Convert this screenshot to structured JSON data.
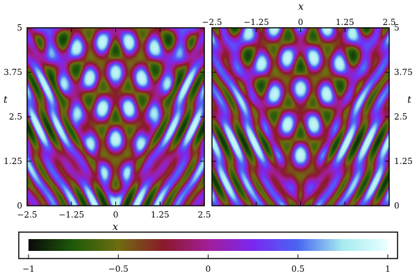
{
  "chart_data": [
    {
      "type": "heatmap",
      "panel": "left",
      "xlabel": "x",
      "ylabel": "t",
      "xlim": [
        -2.5,
        2.5
      ],
      "ylim": [
        0,
        5
      ],
      "x_ticks": [
        "−2.5",
        "−1.25",
        "0",
        "1.25",
        "2.5"
      ],
      "x_tick_values": [
        -2.5,
        -1.25,
        0,
        1.25,
        2.5
      ],
      "y_ticks": [
        "0",
        "1.25",
        "2.5",
        "3.75",
        "5"
      ],
      "y_tick_values": [
        0,
        1.25,
        2.5,
        3.75,
        5
      ],
      "x_axis_position": "bottom",
      "y_axis_position": "left",
      "field": "interference pattern symmetric about x = 0 (V-shaped fringes opening upward)"
    },
    {
      "type": "heatmap",
      "panel": "right",
      "xlabel": "x",
      "ylabel": "t",
      "xlim": [
        -2.5,
        2.5
      ],
      "ylim": [
        0,
        5
      ],
      "x_ticks": [
        "−2.5",
        "−1.25",
        "0",
        "1.25",
        "2.5"
      ],
      "x_tick_values": [
        -2.5,
        -1.25,
        0,
        1.25,
        2.5
      ],
      "y_ticks": [
        "0",
        "1.25",
        "2.5",
        "3.75",
        "5"
      ],
      "y_tick_values": [
        0,
        1.25,
        2.5,
        3.75,
        5
      ],
      "x_axis_position": "top",
      "y_axis_position": "right",
      "field": "interference pattern symmetric about x = 0 (V-shaped fringes opening upward)"
    }
  ],
  "colorbar": {
    "range": [
      -1,
      1
    ],
    "ticks": [
      "−1",
      "−0.5",
      "0",
      "0.5",
      "1"
    ],
    "tick_values": [
      -1,
      -0.5,
      0,
      0.5,
      1
    ],
    "orientation": "horizontal",
    "colors": [
      "#0a0a0a",
      "#1e5a0a",
      "#6e6e10",
      "#8a1a2a",
      "#a21e98",
      "#7a28f2",
      "#4a66f2",
      "#a6ecf0",
      "#eaffff"
    ]
  }
}
